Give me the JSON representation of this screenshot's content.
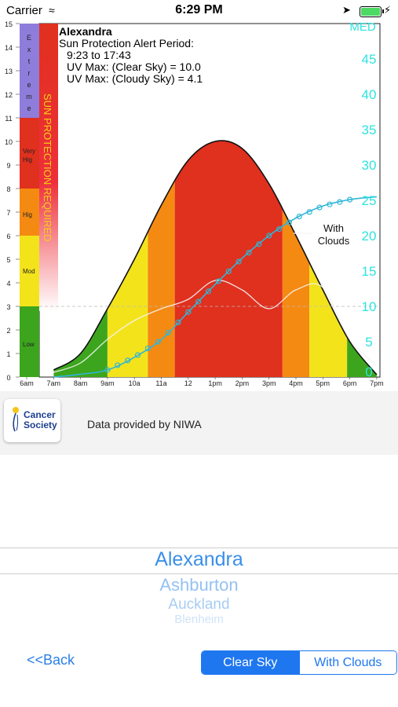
{
  "status_bar": {
    "carrier": "Carrier",
    "time": "6:29 PM"
  },
  "chart": {
    "location": "Alexandra",
    "alert_heading": "Sun Protection Alert Period:",
    "alert_period": "9:23 to 17:43",
    "uv_clear": "UV Max: (Clear Sky) = 10.0",
    "uv_cloudy": "UV Max: (Cloudy Sky) = 4.1",
    "protection_label": "SUN PROTECTION REQUIRED",
    "with_clouds_label_1": "With",
    "with_clouds_label_2": "Clouds",
    "med_label": "MED",
    "uv_levels": [
      "Low",
      "Mod",
      "Hig",
      "Very Hig",
      "Extreme"
    ],
    "left_ticks": [
      "0",
      "1",
      "2",
      "3",
      "4",
      "5",
      "6",
      "7",
      "8",
      "9",
      "10",
      "11",
      "12",
      "13",
      "14",
      "15"
    ],
    "right_ticks": [
      "0",
      "5",
      "10",
      "15",
      "20",
      "25",
      "30",
      "35",
      "40",
      "45"
    ],
    "time_labels": [
      "6am",
      "7am",
      "8am",
      "9am",
      "10a",
      "11a",
      "12",
      "1pm",
      "2pm",
      "3pm",
      "4pm",
      "5pm",
      "6pm",
      "7pm"
    ],
    "colors": {
      "low": "#3ca51d",
      "moderate": "#f3e31b",
      "high": "#f58a12",
      "very_high": "#e0301e",
      "extreme": "#8e7ddb",
      "med_line": "#2fb6d7",
      "med_text": "#2fe3e0"
    }
  },
  "chart_data": {
    "type": "area",
    "x": [
      "7am",
      "8am",
      "9am",
      "10a",
      "11a",
      "12",
      "1pm",
      "2pm",
      "3pm",
      "4pm",
      "5pm",
      "6pm",
      "7pm"
    ],
    "series": [
      {
        "name": "",
        "values": [
          0.3,
          1.0,
          2.9,
          5.0,
          7.3,
          9.2,
          10.0,
          9.7,
          8.2,
          6.0,
          3.7,
          1.5,
          0.1
        ]
      },
      {
        "name": "With Clouds",
        "values": [
          0.2,
          0.6,
          1.6,
          2.4,
          2.9,
          3.3,
          4.1,
          3.7,
          2.9,
          3.7,
          3.8,
          1.6,
          0.5
        ]
      },
      {
        "name": "MED",
        "values": [
          0.0,
          0.4,
          1.0,
          2.8,
          5.3,
          9.2,
          13.1,
          16.8,
          20.0,
          22.5,
          24.2,
          25.1,
          25.5
        ]
      }
    ],
    "ylim_left": [
      0,
      15
    ],
    "ylim_right": [
      0,
      50
    ]
  },
  "footer": {
    "logo_line1": "Cancer",
    "logo_line2": "Society",
    "credit": "Data provided by NIWA"
  },
  "picker": {
    "items": [
      "Alexandra",
      "Ashburton",
      "Auckland",
      "Blenheim"
    ]
  },
  "nav": {
    "back": "<<Back"
  },
  "segment": {
    "clear": "Clear Sky",
    "clouds": "With Clouds"
  }
}
